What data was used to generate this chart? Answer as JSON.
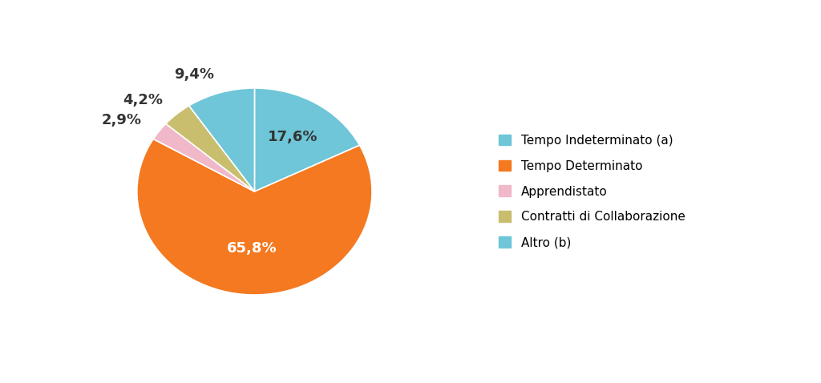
{
  "labels": [
    "Tempo Indeterminato (a)",
    "Tempo Determinato",
    "Apprendistato",
    "Contratti di Collaborazione",
    "Altro (b)"
  ],
  "values": [
    17.6,
    65.8,
    2.9,
    4.2,
    9.4
  ],
  "slice_colors": [
    "#6ec6d8",
    "#f47920",
    "#f0b8c8",
    "#c8be6e",
    "#6ec6d8"
  ],
  "edge_colors": [
    "#4a9db0",
    "#c85a00",
    "#c88898",
    "#a09840",
    "#4a9db0"
  ],
  "pct_labels": [
    "17,6%",
    "65,8%",
    "2,9%",
    "4,2%",
    "9,4%"
  ],
  "legend_colors": [
    "#6ec6d8",
    "#f47920",
    "#f0b8c8",
    "#c8be6e",
    "#6ec6d8"
  ],
  "background_color": "#ffffff",
  "font_size_pct": 13,
  "font_size_legend": 11,
  "startangle": 90
}
